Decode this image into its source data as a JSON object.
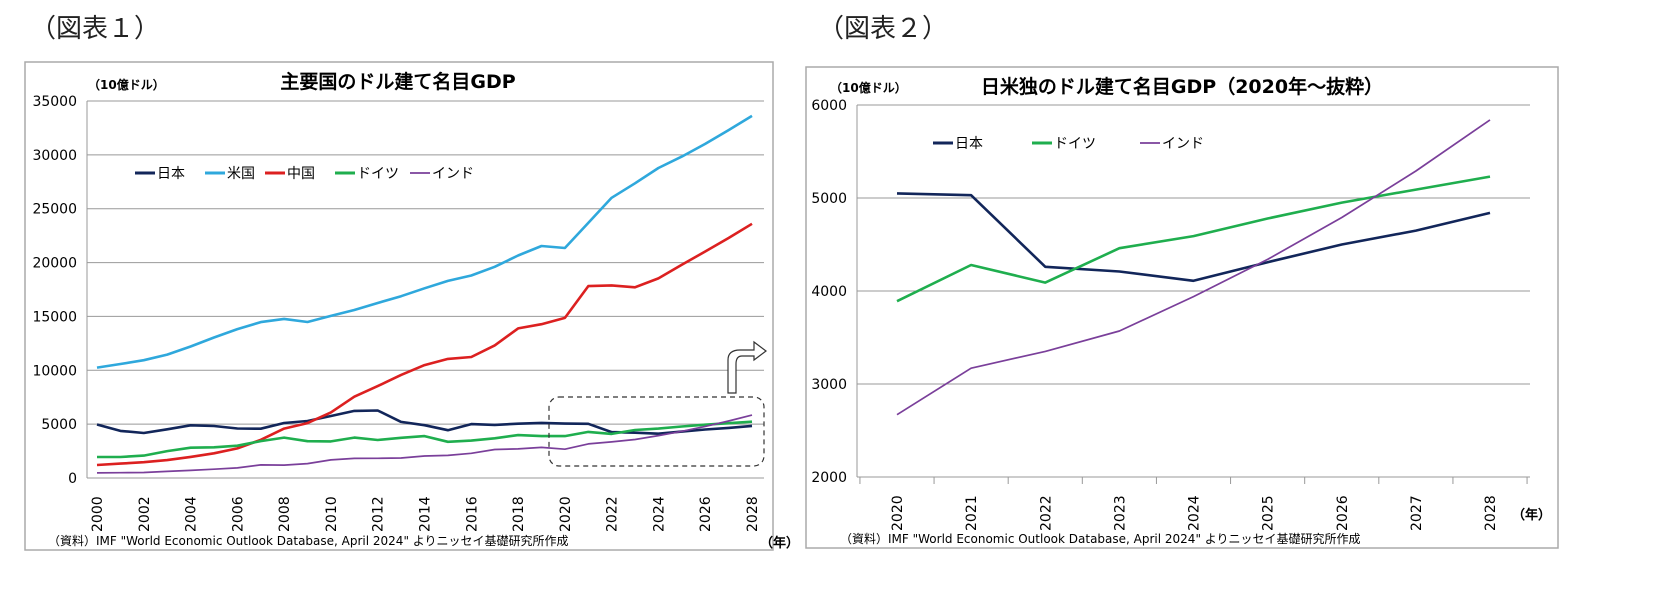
{
  "figure1": {
    "label": "（図表１）",
    "chart_data": {
      "type": "line",
      "title": "主要国のドル建て名目GDP",
      "unit_label": "（10億ドル）",
      "xlabel": "（年）",
      "source": "（資料）IMF \"World Economic Outlook Database, April 2024\" よりニッセイ基礎研究所作成",
      "ylim": [
        0,
        35000
      ],
      "yticks": [
        0,
        5000,
        10000,
        15000,
        20000,
        25000,
        30000,
        35000
      ],
      "x": [
        2000,
        2001,
        2002,
        2003,
        2004,
        2005,
        2006,
        2007,
        2008,
        2009,
        2010,
        2011,
        2012,
        2013,
        2014,
        2015,
        2016,
        2017,
        2018,
        2019,
        2020,
        2021,
        2022,
        2023,
        2024,
        2025,
        2026,
        2027,
        2028
      ],
      "xtick_labels": [
        "2000",
        "2002",
        "2004",
        "2006",
        "2008",
        "2010",
        "2012",
        "2014",
        "2016",
        "2018",
        "2020",
        "2022",
        "2024",
        "2026",
        "2028"
      ],
      "grid": true,
      "legend_placement": "top-left",
      "series": [
        {
          "name": "日本",
          "color": "#12265a",
          "values": [
            4970,
            4370,
            4180,
            4520,
            4890,
            4830,
            4600,
            4580,
            5110,
            5290,
            5760,
            6230,
            6270,
            5210,
            4900,
            4440,
            5000,
            4930,
            5040,
            5120,
            5050,
            5030,
            4260,
            4210,
            4110,
            4310,
            4500,
            4650,
            4840
          ]
        },
        {
          "name": "米国",
          "color": "#2fa8dc",
          "values": [
            10250,
            10580,
            10940,
            11460,
            12210,
            13040,
            13820,
            14470,
            14770,
            14480,
            15050,
            15600,
            16250,
            16880,
            17610,
            18300,
            18800,
            19610,
            20660,
            21540,
            21350,
            23680,
            26010,
            27360,
            28780,
            29840,
            31020,
            32300,
            33620
          ]
        },
        {
          "name": "中国",
          "color": "#dc2020",
          "values": [
            1210,
            1340,
            1470,
            1660,
            1960,
            2290,
            2750,
            3550,
            4590,
            5100,
            6090,
            7550,
            8530,
            9570,
            10480,
            11060,
            11230,
            12310,
            13890,
            14280,
            14860,
            17820,
            17880,
            17700,
            18530,
            19790,
            21030,
            22280,
            23600
          ]
        },
        {
          "name": "ドイツ",
          "color": "#1fae4e",
          "values": [
            1950,
            1950,
            2080,
            2500,
            2810,
            2850,
            3000,
            3430,
            3750,
            3420,
            3400,
            3750,
            3530,
            3730,
            3890,
            3360,
            3470,
            3690,
            3980,
            3890,
            3890,
            4280,
            4090,
            4460,
            4590,
            4780,
            4950,
            5090,
            5230
          ]
        },
        {
          "name": "インド",
          "color": "#7a3f9a",
          "values": [
            470,
            490,
            510,
            610,
            710,
            820,
            940,
            1220,
            1200,
            1340,
            1680,
            1820,
            1830,
            1860,
            2040,
            2100,
            2290,
            2650,
            2700,
            2840,
            2670,
            3170,
            3350,
            3570,
            3940,
            4340,
            4790,
            5290,
            5840
          ]
        }
      ]
    }
  },
  "figure2": {
    "label": "（図表２）",
    "chart_data": {
      "type": "line",
      "title": "日米独のドル建て名目GDP（2020年～抜粋）",
      "unit_label": "（10億ドル）",
      "xlabel": "（年）",
      "source": "（資料）IMF \"World Economic Outlook Database, April 2024\" よりニッセイ基礎研究所作成",
      "ylim": [
        2000,
        6000
      ],
      "yticks": [
        2000,
        3000,
        4000,
        5000,
        6000
      ],
      "x": [
        2020,
        2021,
        2022,
        2023,
        2024,
        2025,
        2026,
        2027,
        2028
      ],
      "xtick_labels": [
        "2020",
        "2021",
        "2022",
        "2023",
        "2024",
        "2025",
        "2026",
        "2027",
        "2028"
      ],
      "grid": true,
      "legend_placement": "top-left",
      "series": [
        {
          "name": "日本",
          "color": "#12265a",
          "values": [
            5050,
            5030,
            4260,
            4210,
            4110,
            4310,
            4500,
            4650,
            4840
          ]
        },
        {
          "name": "ドイツ",
          "color": "#1fae4e",
          "values": [
            3890,
            4280,
            4090,
            4460,
            4590,
            4780,
            4950,
            5090,
            5230
          ]
        },
        {
          "name": "インド",
          "color": "#7a3f9a",
          "values": [
            2670,
            3170,
            3350,
            3570,
            3940,
            4340,
            4790,
            5290,
            5840
          ]
        }
      ]
    }
  }
}
